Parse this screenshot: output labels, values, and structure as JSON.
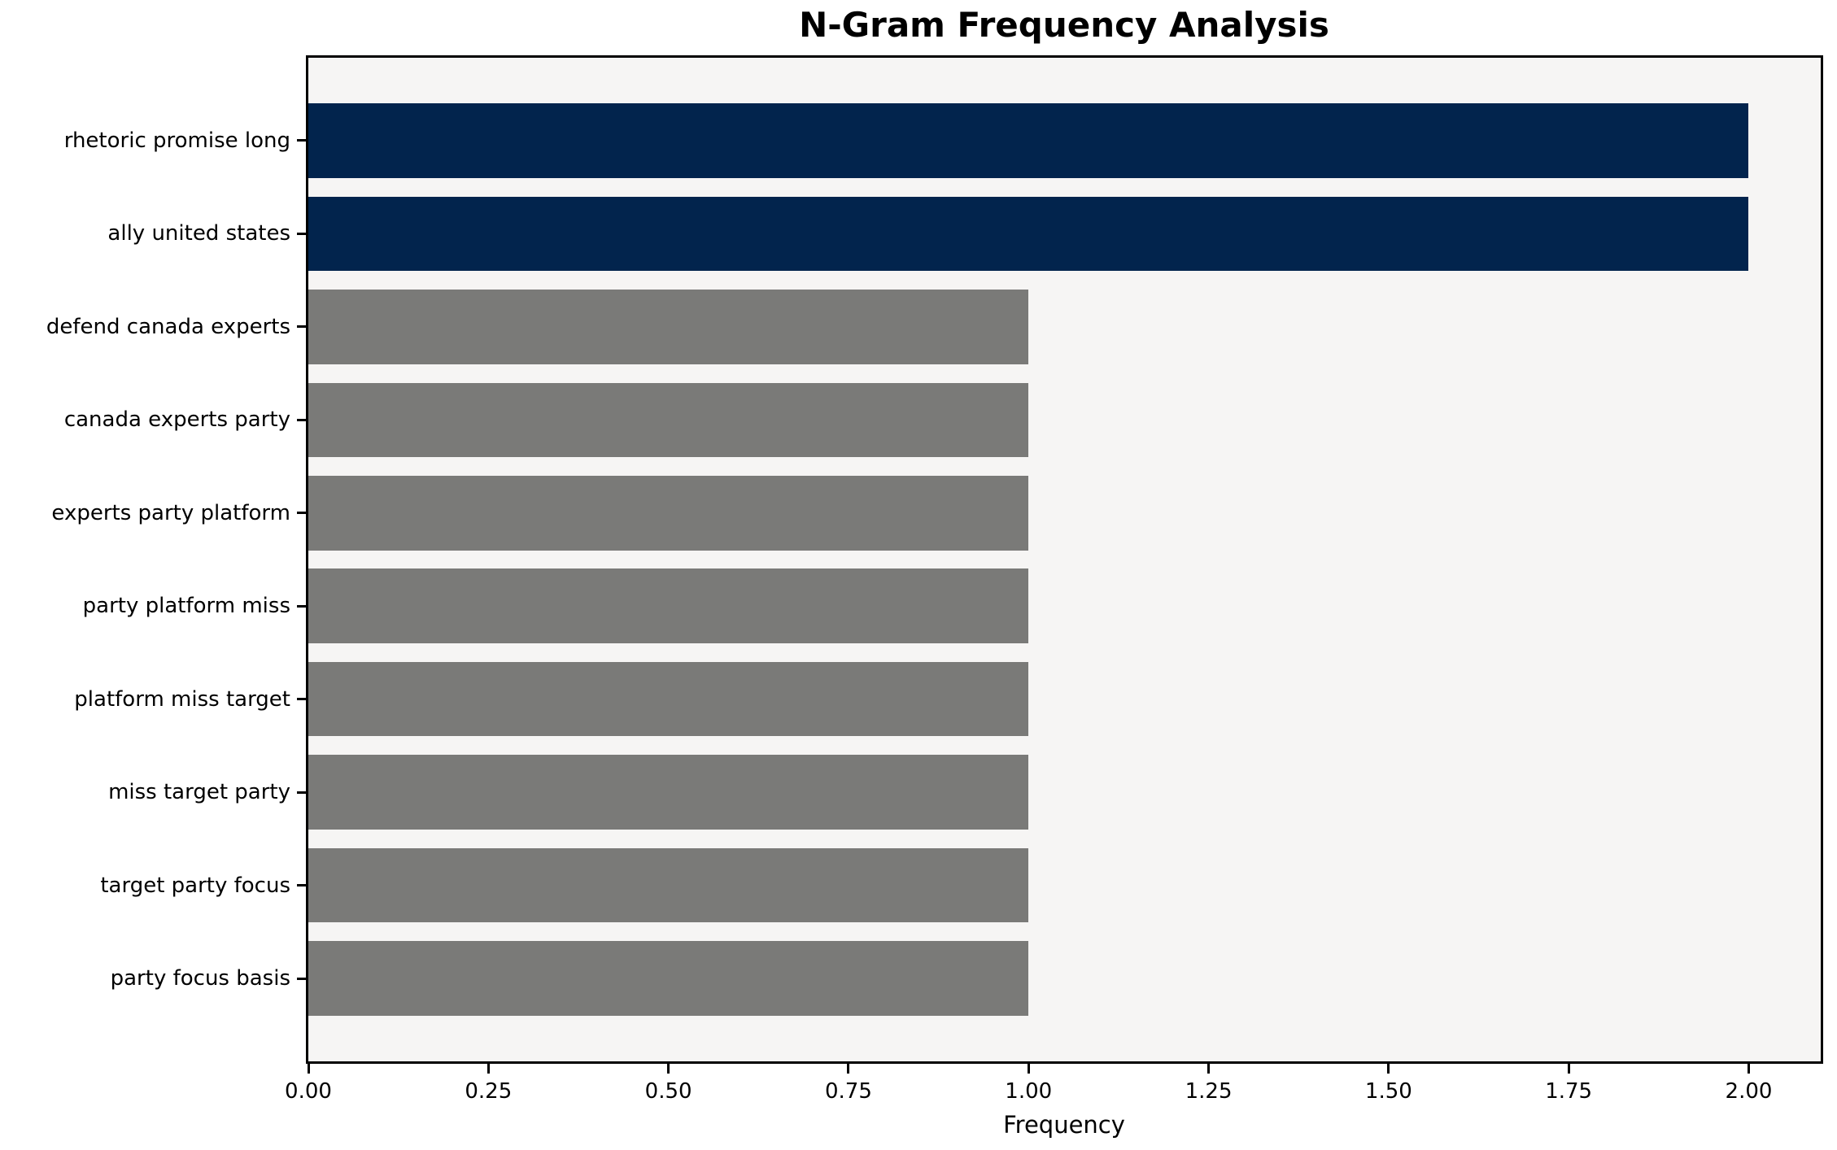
{
  "chart_data": {
    "type": "bar",
    "orientation": "horizontal",
    "title": "N-Gram Frequency Analysis",
    "xlabel": "Frequency",
    "ylabel": "",
    "categories": [
      "rhetoric promise long",
      "ally united states",
      "defend canada experts",
      "canada experts party",
      "experts party platform",
      "party platform miss",
      "platform miss target",
      "miss target party",
      "target party focus",
      "party focus basis"
    ],
    "values": [
      2,
      2,
      1,
      1,
      1,
      1,
      1,
      1,
      1,
      1
    ],
    "bar_colors": [
      "#02244d",
      "#02244d",
      "#7a7a78",
      "#7a7a78",
      "#7a7a78",
      "#7a7a78",
      "#7a7a78",
      "#7a7a78",
      "#7a7a78",
      "#7a7a78"
    ],
    "highlight_color": "#02244d",
    "default_color": "#7a7a78",
    "xlim": [
      0,
      2.1
    ],
    "xticks": [
      0.0,
      0.25,
      0.5,
      0.75,
      1.0,
      1.25,
      1.5,
      1.75,
      2.0
    ],
    "xtick_labels": [
      "0.00",
      "0.25",
      "0.50",
      "0.75",
      "1.00",
      "1.25",
      "1.50",
      "1.75",
      "2.00"
    ],
    "bar_height_fraction": 0.8,
    "grid": false,
    "legend": false,
    "plot_bg": "#f6f5f4",
    "figure_bg": "#ffffff",
    "spine_color": "#000000"
  }
}
